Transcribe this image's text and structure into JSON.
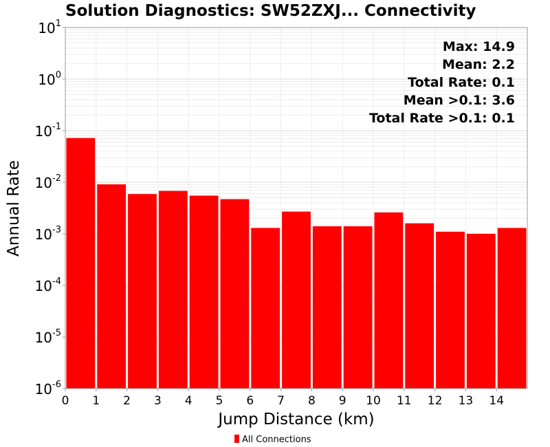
{
  "chart_data": {
    "type": "bar",
    "title": "Solution Diagnostics: SW52ZXJ... Connectivity",
    "xlabel": "Jump Distance (km)",
    "ylabel": "Annual Rate",
    "y_scale": "log",
    "ylim": [
      1e-06,
      10
    ],
    "xlim": [
      0,
      15
    ],
    "y_ticks": [
      {
        "base": "10",
        "exp": "1"
      },
      {
        "base": "10",
        "exp": "0"
      },
      {
        "base": "10",
        "exp": "-1"
      },
      {
        "base": "10",
        "exp": "-2"
      },
      {
        "base": "10",
        "exp": "-3"
      },
      {
        "base": "10",
        "exp": "-4"
      },
      {
        "base": "10",
        "exp": "-5"
      },
      {
        "base": "10",
        "exp": "-6"
      }
    ],
    "x_ticks": [
      "0",
      "1",
      "2",
      "3",
      "4",
      "5",
      "6",
      "7",
      "8",
      "9",
      "10",
      "11",
      "12",
      "13",
      "14"
    ],
    "bin_starts": [
      0,
      1,
      2,
      3,
      4,
      5,
      6,
      7,
      8,
      9,
      10,
      11,
      12,
      13,
      14
    ],
    "bin_width": 1,
    "values": [
      0.072,
      0.0091,
      0.0059,
      0.0068,
      0.0055,
      0.0047,
      0.0013,
      0.0027,
      0.0014,
      0.0014,
      0.0026,
      0.0016,
      0.0011,
      0.001,
      0.0013
    ],
    "series": [
      {
        "name": "All Connections",
        "color": "#ff0000"
      }
    ],
    "stats": [
      "Max: 14.9",
      "Mean: 2.2",
      "Total Rate: 0.1",
      "Mean >0.1: 3.6",
      "Total Rate >0.1: 0.1"
    ],
    "grid": true,
    "legend_position": "bottom-center"
  }
}
